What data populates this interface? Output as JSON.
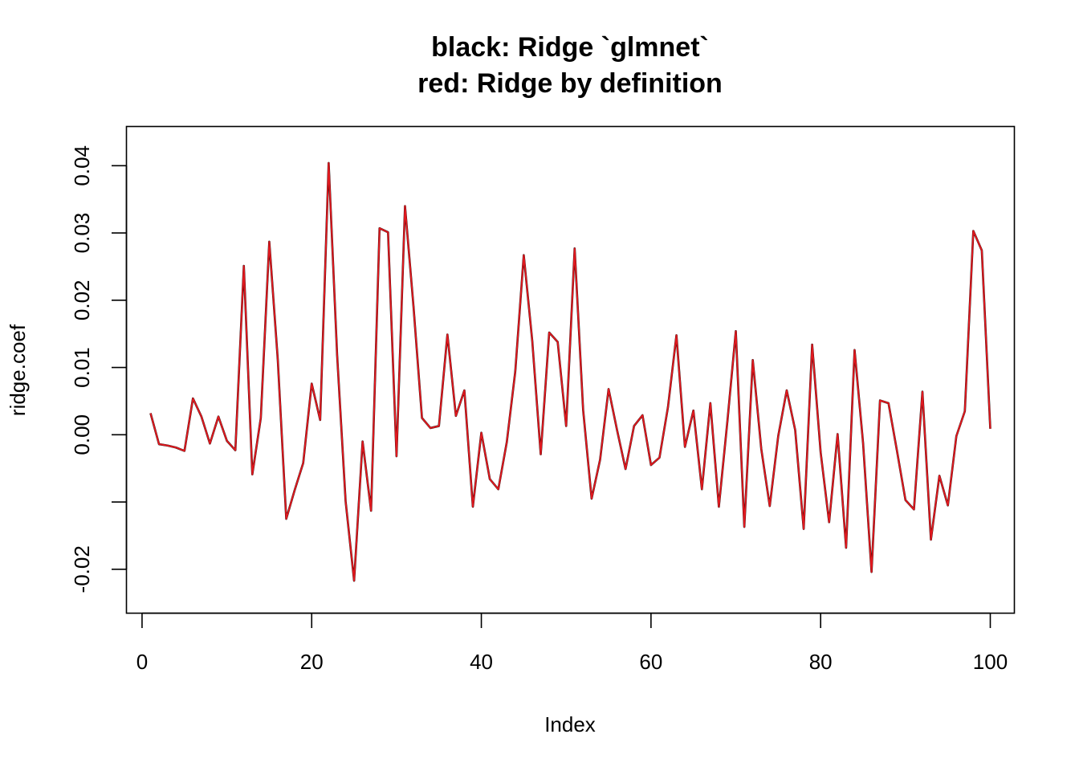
{
  "chart_data": {
    "type": "line",
    "title_lines": [
      "black: Ridge `glmnet`",
      "red: Ridge by definition"
    ],
    "xlabel": "Index",
    "ylabel": "ridge.coef",
    "xlim": [
      1,
      100
    ],
    "ylim": [
      -0.0239,
      0.0432
    ],
    "x_ticks": [
      0,
      20,
      40,
      60,
      80,
      100
    ],
    "x_tick_labels": [
      "0",
      "20",
      "40",
      "60",
      "80",
      "100"
    ],
    "y_ticks": [
      -0.02,
      -0.01,
      0.0,
      0.01,
      0.02,
      0.03,
      0.04
    ],
    "y_tick_labels": [
      "-0.02",
      "",
      "0.00",
      "0.01",
      "0.02",
      "0.03",
      "0.04"
    ],
    "grid": false,
    "legend": "none",
    "series": [
      {
        "name": "black: Ridge `glmnet`",
        "color": "#000000",
        "values": [
          0.0032,
          -0.0014,
          -0.0016,
          -0.0019,
          -0.0024,
          0.0054,
          0.0027,
          -0.0013,
          0.0027,
          -0.0009,
          -0.0023,
          0.0251,
          -0.0059,
          0.0025,
          0.0287,
          0.0112,
          -0.0125,
          -0.0082,
          -0.0042,
          0.0076,
          0.0022,
          0.0404,
          0.0118,
          -0.0099,
          -0.0217,
          -0.001,
          -0.0113,
          0.0307,
          0.0301,
          -0.0032,
          0.034,
          0.0191,
          0.0025,
          0.001,
          0.0013,
          0.0149,
          0.0028,
          0.0066,
          -0.0107,
          0.0003,
          -0.0066,
          -0.0081,
          -0.0011,
          0.0094,
          0.0267,
          0.014,
          -0.0029,
          0.0152,
          0.0138,
          0.0013,
          0.0277,
          0.0037,
          -0.0095,
          -0.0037,
          0.0068,
          0.0007,
          -0.0051,
          0.0013,
          0.0029,
          -0.0045,
          -0.0034,
          0.0041,
          0.0148,
          -0.0018,
          0.0036,
          -0.0081,
          0.0047,
          -0.0107,
          0.0019,
          0.0154,
          -0.0137,
          0.0111,
          -0.0021,
          -0.0106,
          -0.0002,
          0.0066,
          0.0007,
          -0.014,
          0.0134,
          -0.0026,
          -0.013,
          0.0001,
          -0.0168,
          0.0126,
          -0.0012,
          -0.0204,
          0.0051,
          0.0047,
          -0.0024,
          -0.0097,
          -0.0111,
          0.0064,
          -0.0156,
          -0.0061,
          -0.0105,
          -0.0002,
          0.0035,
          0.0303,
          0.0274,
          0.0009
        ]
      },
      {
        "name": "red: Ridge by definition",
        "color": "#e0191f",
        "values": [
          0.0032,
          -0.0014,
          -0.0016,
          -0.0019,
          -0.0024,
          0.0054,
          0.0027,
          -0.0013,
          0.0027,
          -0.0009,
          -0.0023,
          0.0251,
          -0.0059,
          0.0025,
          0.0287,
          0.0112,
          -0.0125,
          -0.0082,
          -0.0042,
          0.0076,
          0.0022,
          0.0404,
          0.0118,
          -0.0099,
          -0.0217,
          -0.001,
          -0.0113,
          0.0307,
          0.0301,
          -0.0032,
          0.034,
          0.0191,
          0.0025,
          0.001,
          0.0013,
          0.0149,
          0.0028,
          0.0066,
          -0.0107,
          0.0003,
          -0.0066,
          -0.0081,
          -0.0011,
          0.0094,
          0.0267,
          0.014,
          -0.0029,
          0.0152,
          0.0138,
          0.0013,
          0.0277,
          0.0037,
          -0.0095,
          -0.0037,
          0.0068,
          0.0007,
          -0.0051,
          0.0013,
          0.0029,
          -0.0045,
          -0.0034,
          0.0041,
          0.0148,
          -0.0018,
          0.0036,
          -0.0081,
          0.0047,
          -0.0107,
          0.0019,
          0.0154,
          -0.0137,
          0.0111,
          -0.0021,
          -0.0106,
          -0.0002,
          0.0066,
          0.0007,
          -0.014,
          0.0134,
          -0.0026,
          -0.013,
          0.0001,
          -0.0168,
          0.0126,
          -0.0012,
          -0.0204,
          0.0051,
          0.0047,
          -0.0024,
          -0.0097,
          -0.0111,
          0.0064,
          -0.0156,
          -0.0061,
          -0.0105,
          -0.0002,
          0.0035,
          0.0303,
          0.0274,
          0.0009
        ]
      }
    ]
  }
}
